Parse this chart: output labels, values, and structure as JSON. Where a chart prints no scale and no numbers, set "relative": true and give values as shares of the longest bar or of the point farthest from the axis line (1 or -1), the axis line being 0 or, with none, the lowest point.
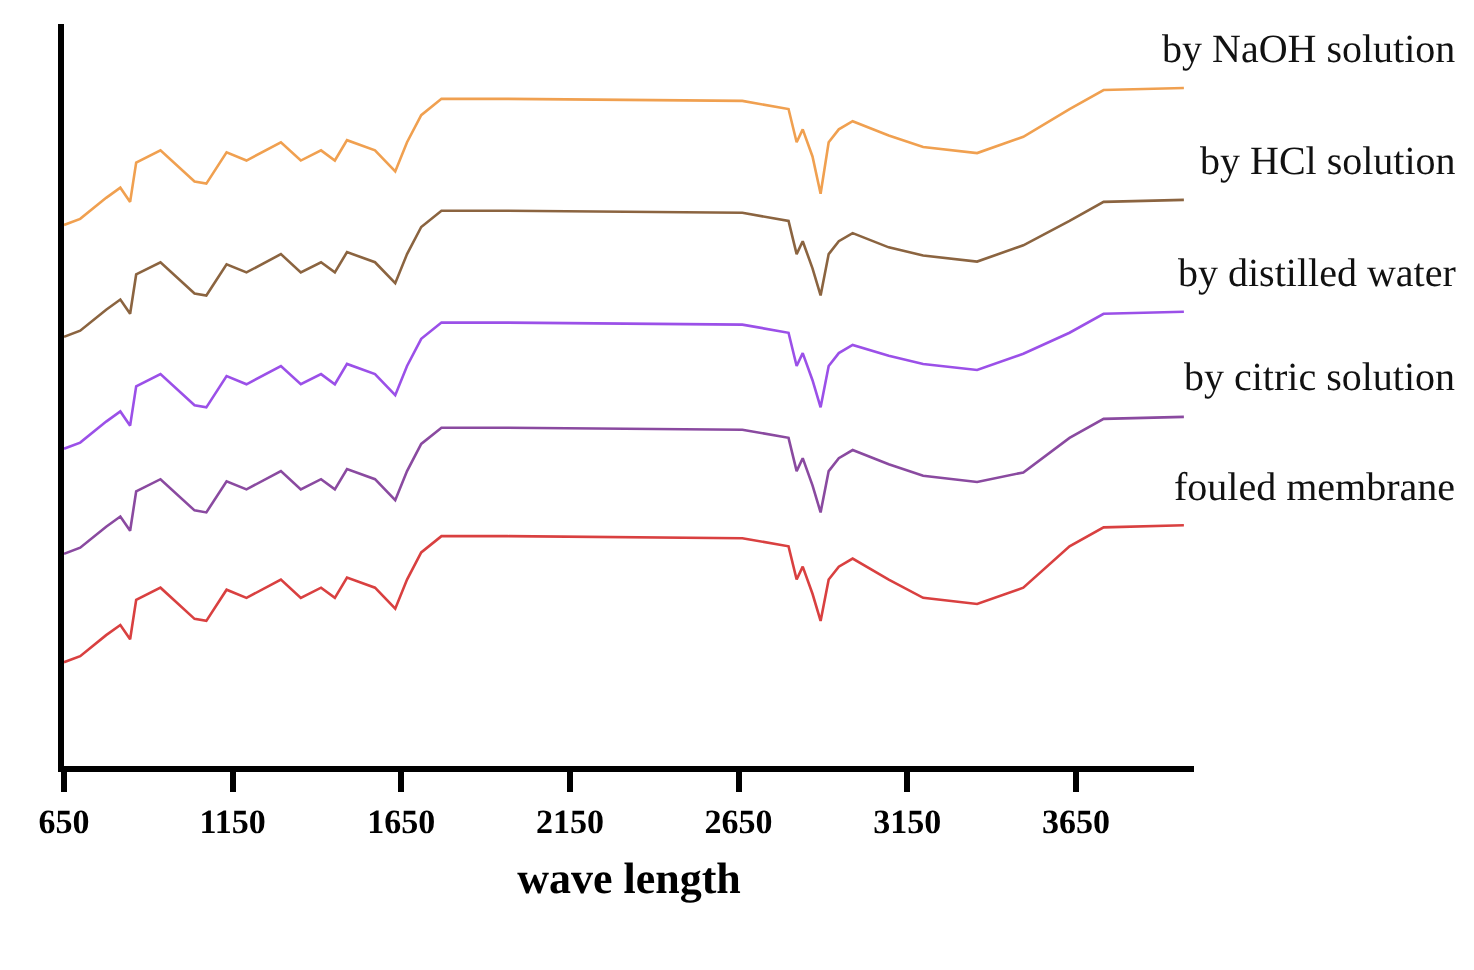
{
  "chart_data": {
    "type": "line",
    "xlabel": "wave length",
    "relative": true,
    "xlim": [
      650,
      4000
    ],
    "xticks": [
      650,
      1150,
      1650,
      2150,
      2650,
      3150,
      3650
    ],
    "legend": false,
    "marker": "none",
    "line_style": "solid",
    "tick_labels": "x",
    "x": [
      650,
      698,
      775,
      817,
      846,
      864,
      936,
      1037,
      1072,
      1132,
      1191,
      1293,
      1352,
      1412,
      1453,
      1489,
      1572,
      1632,
      1667,
      1709,
      1769,
      1965,
      2661,
      2798,
      2822,
      2840,
      2869,
      2893,
      2917,
      2947,
      2988,
      3095,
      3197,
      3357,
      3494,
      3631,
      3732,
      3970
    ],
    "series": [
      {
        "name": "by NaOH solution",
        "color": "#f0a050",
        "values": [
          0.798,
          0.807,
          0.838,
          0.853,
          0.832,
          0.89,
          0.908,
          0.862,
          0.859,
          0.905,
          0.893,
          0.92,
          0.893,
          0.908,
          0.893,
          0.923,
          0.908,
          0.877,
          0.92,
          0.96,
          0.984,
          0.984,
          0.981,
          0.969,
          0.92,
          0.939,
          0.899,
          0.844,
          0.92,
          0.939,
          0.951,
          0.93,
          0.913,
          0.904,
          0.928,
          0.969,
          0.997,
          1.0
        ]
      },
      {
        "name": "by HCl solution",
        "color": "#8b6440",
        "values": [
          0.633,
          0.642,
          0.673,
          0.688,
          0.667,
          0.725,
          0.743,
          0.697,
          0.694,
          0.74,
          0.728,
          0.755,
          0.728,
          0.743,
          0.728,
          0.758,
          0.743,
          0.712,
          0.755,
          0.795,
          0.819,
          0.819,
          0.816,
          0.804,
          0.755,
          0.774,
          0.734,
          0.694,
          0.755,
          0.774,
          0.786,
          0.765,
          0.753,
          0.744,
          0.768,
          0.804,
          0.832,
          0.835
        ]
      },
      {
        "name": "by distilled water",
        "color": "#9b50e8",
        "values": [
          0.468,
          0.477,
          0.508,
          0.523,
          0.502,
          0.56,
          0.578,
          0.532,
          0.529,
          0.575,
          0.563,
          0.59,
          0.563,
          0.578,
          0.563,
          0.593,
          0.578,
          0.547,
          0.59,
          0.63,
          0.654,
          0.654,
          0.651,
          0.639,
          0.59,
          0.609,
          0.569,
          0.529,
          0.59,
          0.609,
          0.621,
          0.605,
          0.593,
          0.584,
          0.608,
          0.639,
          0.667,
          0.67
        ]
      },
      {
        "name": "by citric solution",
        "color": "#8a4aa0",
        "values": [
          0.313,
          0.322,
          0.353,
          0.368,
          0.347,
          0.405,
          0.423,
          0.377,
          0.374,
          0.42,
          0.408,
          0.435,
          0.408,
          0.423,
          0.408,
          0.438,
          0.423,
          0.392,
          0.435,
          0.475,
          0.499,
          0.499,
          0.496,
          0.484,
          0.435,
          0.454,
          0.414,
          0.374,
          0.435,
          0.454,
          0.466,
          0.445,
          0.428,
          0.419,
          0.433,
          0.484,
          0.512,
          0.515
        ]
      },
      {
        "name": "fouled membrane",
        "color": "#d94040",
        "values": [
          0.153,
          0.162,
          0.193,
          0.208,
          0.187,
          0.245,
          0.263,
          0.217,
          0.214,
          0.26,
          0.248,
          0.275,
          0.248,
          0.263,
          0.248,
          0.278,
          0.263,
          0.232,
          0.275,
          0.315,
          0.339,
          0.339,
          0.336,
          0.324,
          0.275,
          0.294,
          0.254,
          0.214,
          0.275,
          0.294,
          0.306,
          0.275,
          0.248,
          0.239,
          0.263,
          0.324,
          0.352,
          0.355
        ]
      }
    ]
  }
}
